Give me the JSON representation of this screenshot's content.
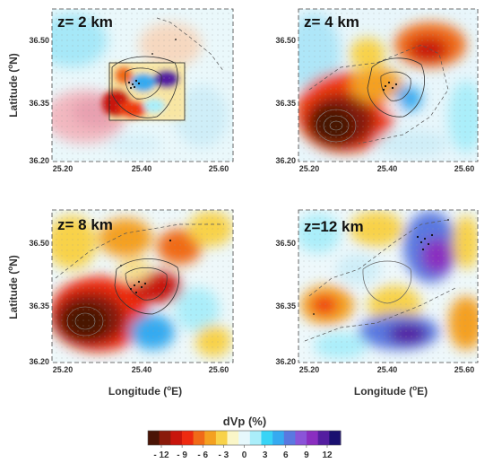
{
  "figure": {
    "ylabel_prefix": "Latitude (",
    "ylabel_sup": "o",
    "ylabel_suffix": "N)",
    "xlabel_prefix": "Longitude (",
    "xlabel_sup": "o",
    "xlabel_suffix": "E)",
    "x_ticks": [
      "25.20",
      "25.40",
      "25.60"
    ],
    "y_ticks": [
      "36.50",
      "36.35",
      "36.20"
    ]
  },
  "panels": [
    {
      "label": "z= 2 km"
    },
    {
      "label": "z= 4 km"
    },
    {
      "label": "z= 8 km"
    },
    {
      "label": "z=12 km"
    }
  ],
  "colorbar": {
    "title": "dVp (%)",
    "ticks": [
      "- 12",
      "- 9",
      "- 6",
      "- 3",
      "0",
      "3",
      "6",
      "9",
      "12"
    ],
    "colors": [
      "#4a1406",
      "#8a1a0a",
      "#c8150c",
      "#ee2a10",
      "#f06a18",
      "#f4a020",
      "#f8d24a",
      "#faf6c8",
      "#e6f8fc",
      "#aaeefa",
      "#38d4f6",
      "#36aaf0",
      "#5a78e0",
      "#8a54d8",
      "#8a2ec0",
      "#541ea0",
      "#1a1070"
    ]
  }
}
